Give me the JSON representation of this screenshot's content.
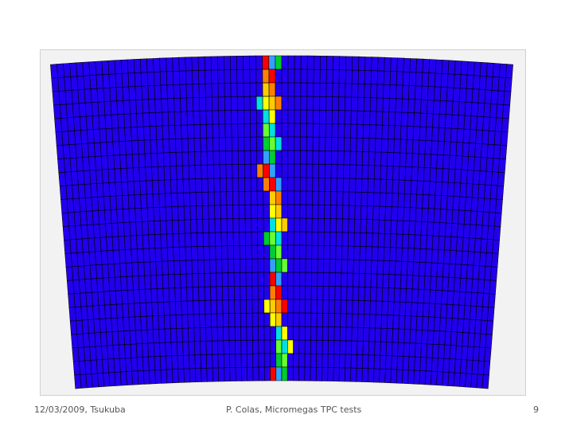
{
  "footer": {
    "date": "12/03/2009, Tsukuba",
    "title": "P. Colas, Micromegas TPC tests",
    "page": "9"
  }
}
